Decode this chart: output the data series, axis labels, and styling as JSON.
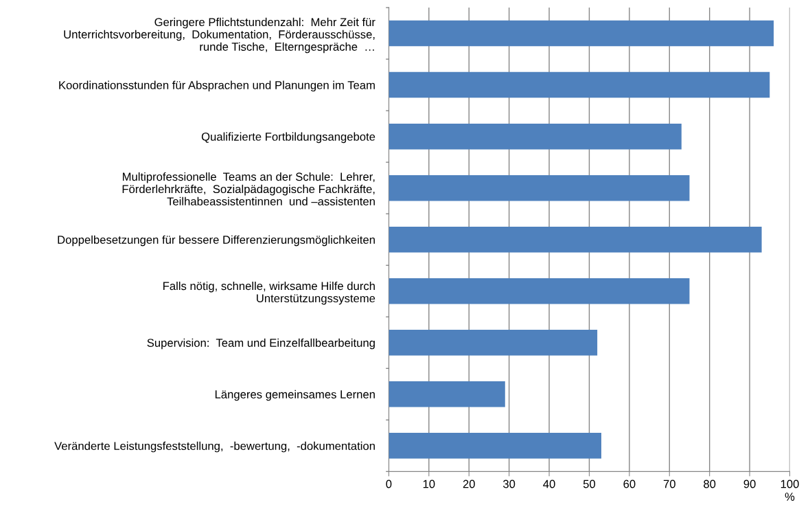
{
  "chart_data": {
    "type": "bar",
    "orientation": "horizontal",
    "categories": [
      "Geringere Pflichtstundenzahl:  Mehr Zeit für\nUnterrichtsvorbereitung,  Dokumentation,  Förderausschüsse,\nrunde Tische,  Elterngespräche  …",
      "Koordinationsstunden für Absprachen und Planungen im Team",
      "Qualifizierte Fortbildungsangebote",
      "Multiprofessionelle  Teams an der Schule:  Lehrer,\nFörderlehrkräfte,  Sozialpädagogische Fachkräfte,\nTeilhabeassistentinnen  und –assistenten",
      "Doppelbesetzungen für bessere Differenzierungsmöglichkeiten",
      "Falls nötig, schnelle, wirksame Hilfe durch\nUnterstützungssysteme",
      "Supervision:  Team und Einzelfallbearbeitung",
      "Längeres gemeinsames Lernen",
      "Veränderte Leistungsfeststellung,  -bewertung,  -dokumentation"
    ],
    "values": [
      96,
      95,
      73,
      75,
      93,
      75,
      52,
      29,
      53
    ],
    "color": "#4f81bd",
    "xlim": [
      0,
      100
    ],
    "xticks": [
      0,
      10,
      20,
      30,
      40,
      50,
      60,
      70,
      80,
      90,
      100
    ],
    "xlabel": "%",
    "grid": "x",
    "legend": false
  }
}
